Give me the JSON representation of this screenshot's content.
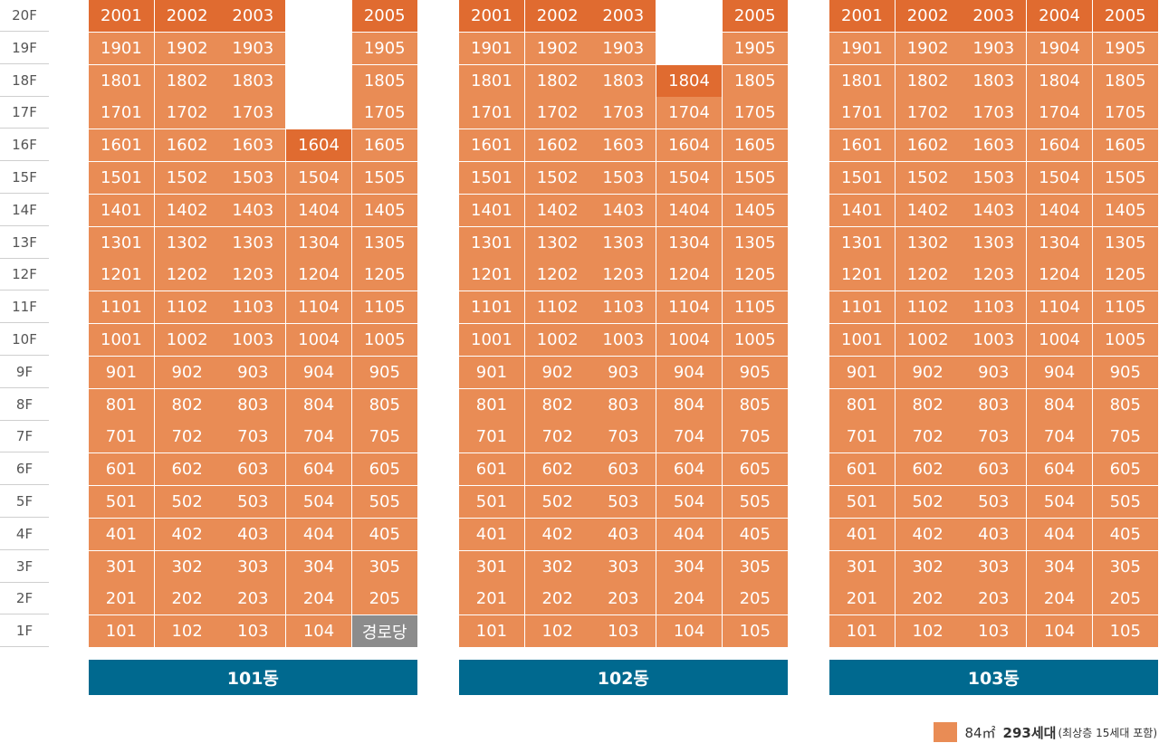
{
  "colors": {
    "standard": "#e98c55",
    "top_floor": "#e06b30",
    "facility": "#8c8c8c",
    "building_label_bg": "#00698f",
    "text": "#ffffff"
  },
  "floors": [
    "20F",
    "19F",
    "18F",
    "17F",
    "16F",
    "15F",
    "14F",
    "13F",
    "12F",
    "11F",
    "10F",
    "9F",
    "8F",
    "7F",
    "6F",
    "5F",
    "4F",
    "3F",
    "2F",
    "1F"
  ],
  "buildings": [
    {
      "name": "101동",
      "rows": [
        [
          "2001",
          "2002",
          "2003",
          null,
          "2005"
        ],
        [
          "1901",
          "1902",
          "1903",
          null,
          "1905"
        ],
        [
          "1801",
          "1802",
          "1803",
          null,
          "1805"
        ],
        [
          "1701",
          "1702",
          "1703",
          null,
          "1705"
        ],
        [
          "1601",
          "1602",
          "1603",
          "1604",
          "1605"
        ],
        [
          "1501",
          "1502",
          "1503",
          "1504",
          "1505"
        ],
        [
          "1401",
          "1402",
          "1403",
          "1404",
          "1405"
        ],
        [
          "1301",
          "1302",
          "1303",
          "1304",
          "1305"
        ],
        [
          "1201",
          "1202",
          "1203",
          "1204",
          "1205"
        ],
        [
          "1101",
          "1102",
          "1103",
          "1104",
          "1105"
        ],
        [
          "1001",
          "1002",
          "1003",
          "1004",
          "1005"
        ],
        [
          "901",
          "902",
          "903",
          "904",
          "905"
        ],
        [
          "801",
          "802",
          "803",
          "804",
          "805"
        ],
        [
          "701",
          "702",
          "703",
          "704",
          "705"
        ],
        [
          "601",
          "602",
          "603",
          "604",
          "605"
        ],
        [
          "501",
          "502",
          "503",
          "504",
          "505"
        ],
        [
          "401",
          "402",
          "403",
          "404",
          "405"
        ],
        [
          "301",
          "302",
          "303",
          "304",
          "305"
        ],
        [
          "201",
          "202",
          "203",
          "204",
          "205"
        ],
        [
          "101",
          "102",
          "103",
          "104",
          "경로당"
        ]
      ],
      "top_units": [
        "2001",
        "2002",
        "2003",
        "2005",
        "1604"
      ],
      "facility_units": [
        "경로당"
      ]
    },
    {
      "name": "102동",
      "rows": [
        [
          "2001",
          "2002",
          "2003",
          null,
          "2005"
        ],
        [
          "1901",
          "1902",
          "1903",
          null,
          "1905"
        ],
        [
          "1801",
          "1802",
          "1803",
          "1804",
          "1805"
        ],
        [
          "1701",
          "1702",
          "1703",
          "1704",
          "1705"
        ],
        [
          "1601",
          "1602",
          "1603",
          "1604",
          "1605"
        ],
        [
          "1501",
          "1502",
          "1503",
          "1504",
          "1505"
        ],
        [
          "1401",
          "1402",
          "1403",
          "1404",
          "1405"
        ],
        [
          "1301",
          "1302",
          "1303",
          "1304",
          "1305"
        ],
        [
          "1201",
          "1202",
          "1203",
          "1204",
          "1205"
        ],
        [
          "1101",
          "1102",
          "1103",
          "1104",
          "1105"
        ],
        [
          "1001",
          "1002",
          "1003",
          "1004",
          "1005"
        ],
        [
          "901",
          "902",
          "903",
          "904",
          "905"
        ],
        [
          "801",
          "802",
          "803",
          "804",
          "805"
        ],
        [
          "701",
          "702",
          "703",
          "704",
          "705"
        ],
        [
          "601",
          "602",
          "603",
          "604",
          "605"
        ],
        [
          "501",
          "502",
          "503",
          "504",
          "505"
        ],
        [
          "401",
          "402",
          "403",
          "404",
          "405"
        ],
        [
          "301",
          "302",
          "303",
          "304",
          "305"
        ],
        [
          "201",
          "202",
          "203",
          "204",
          "205"
        ],
        [
          "101",
          "102",
          "103",
          "104",
          "105"
        ]
      ],
      "top_units": [
        "2001",
        "2002",
        "2003",
        "2005",
        "1804"
      ],
      "facility_units": []
    },
    {
      "name": "103동",
      "rows": [
        [
          "2001",
          "2002",
          "2003",
          "2004",
          "2005"
        ],
        [
          "1901",
          "1902",
          "1903",
          "1904",
          "1905"
        ],
        [
          "1801",
          "1802",
          "1803",
          "1804",
          "1805"
        ],
        [
          "1701",
          "1702",
          "1703",
          "1704",
          "1705"
        ],
        [
          "1601",
          "1602",
          "1603",
          "1604",
          "1605"
        ],
        [
          "1501",
          "1502",
          "1503",
          "1504",
          "1505"
        ],
        [
          "1401",
          "1402",
          "1403",
          "1404",
          "1405"
        ],
        [
          "1301",
          "1302",
          "1303",
          "1304",
          "1305"
        ],
        [
          "1201",
          "1202",
          "1203",
          "1204",
          "1205"
        ],
        [
          "1101",
          "1102",
          "1103",
          "1104",
          "1105"
        ],
        [
          "1001",
          "1002",
          "1003",
          "1004",
          "1005"
        ],
        [
          "901",
          "902",
          "903",
          "904",
          "905"
        ],
        [
          "801",
          "802",
          "803",
          "804",
          "805"
        ],
        [
          "701",
          "702",
          "703",
          "704",
          "705"
        ],
        [
          "601",
          "602",
          "603",
          "604",
          "605"
        ],
        [
          "501",
          "502",
          "503",
          "504",
          "505"
        ],
        [
          "401",
          "402",
          "403",
          "404",
          "405"
        ],
        [
          "301",
          "302",
          "303",
          "304",
          "305"
        ],
        [
          "201",
          "202",
          "203",
          "204",
          "205"
        ],
        [
          "101",
          "102",
          "103",
          "104",
          "105"
        ]
      ],
      "top_units": [
        "2001",
        "2002",
        "2003",
        "2004",
        "2005"
      ],
      "facility_units": []
    }
  ],
  "legend": {
    "area": "84㎡",
    "count": "293세대",
    "note": "(최상층 15세대 포함)"
  }
}
